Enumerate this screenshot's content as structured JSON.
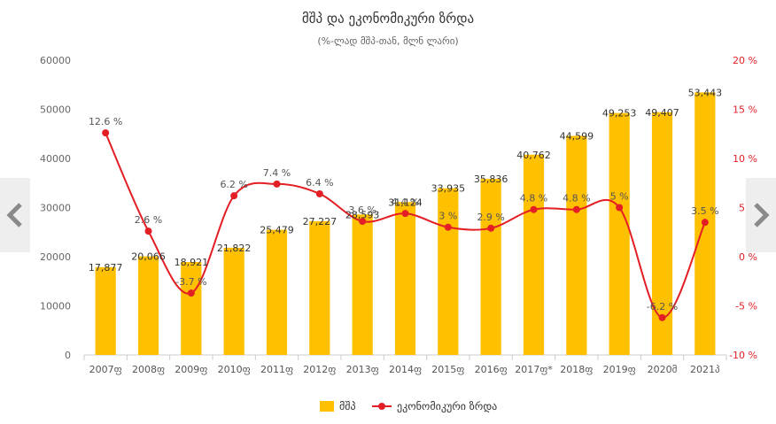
{
  "chart_data": {
    "type": "bar",
    "title": "მშპ და ეკონომიკური ზრდა",
    "subtitle": "(%-ლად მშპ-თან, მლნ ლარი)",
    "categories": [
      "2007ფ",
      "2008ფ",
      "2009ფ",
      "2010ფ",
      "2011ფ",
      "2012ფ",
      "2013ფ",
      "2014ფ",
      "2015ფ",
      "2016ფ",
      "2017ფ*",
      "2018ფ",
      "2019ფ",
      "2020მ",
      "2021პ"
    ],
    "series": [
      {
        "name": "მშპ",
        "type": "bar",
        "axis": "left",
        "color": "#ffc000",
        "values": [
          17877,
          20066,
          18921,
          21822,
          25479,
          27227,
          28593,
          31124,
          33935,
          35836,
          40762,
          44599,
          49253,
          49407,
          53443
        ],
        "labels": [
          "17,877",
          "20,066",
          "18,921",
          "21,822",
          "25,479",
          "27,227",
          "28,593",
          "31,124",
          "33,935",
          "35,836",
          "40,762",
          "44,599",
          "49,253",
          "49,407",
          "53,443"
        ]
      },
      {
        "name": "ეკონომიკური ზრდა",
        "type": "line",
        "axis": "right",
        "color": "#e31e24",
        "values": [
          12.6,
          2.6,
          -3.7,
          6.2,
          7.4,
          6.4,
          3.6,
          4.4,
          3.0,
          2.9,
          4.8,
          4.8,
          5.0,
          -6.2,
          3.5
        ],
        "labels": [
          "12.6 %",
          "2.6 %",
          "-3.7 %",
          "6.2 %",
          "7.4 %",
          "6.4 %",
          "3.6 %",
          "4.4 %",
          "3 %",
          "2.9 %",
          "4.8 %",
          "4.8 %",
          "5 %",
          "-6.2 %",
          "3.5 %"
        ]
      }
    ],
    "y_left": {
      "range": [
        0,
        60000
      ],
      "ticks": [
        0,
        10000,
        20000,
        30000,
        40000,
        50000,
        60000
      ],
      "tick_labels": [
        "0",
        "10000",
        "20000",
        "30000",
        "40000",
        "50000",
        "60000"
      ]
    },
    "y_right": {
      "range": [
        -10,
        20
      ],
      "ticks": [
        -10,
        -5,
        0,
        5,
        10,
        15,
        20
      ],
      "tick_labels": [
        "-10 %",
        "-5 %",
        "0 %",
        "5 %",
        "10 %",
        "15 %",
        "20 %"
      ],
      "color": "#e31e24"
    },
    "grid": false,
    "legend": "bottom-center"
  },
  "nav": {
    "prev_icon": "chevron-left-icon",
    "next_icon": "chevron-right-icon"
  }
}
